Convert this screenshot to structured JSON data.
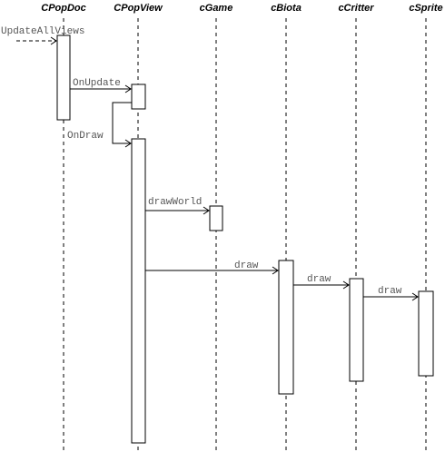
{
  "lifelines": [
    {
      "id": "cpopdoc",
      "label": "CPopDoc"
    },
    {
      "id": "cpopview",
      "label": "CPopView"
    },
    {
      "id": "cgame",
      "label": "cGame"
    },
    {
      "id": "cbiota",
      "label": "cBiota"
    },
    {
      "id": "ccritter",
      "label": "cCritter"
    },
    {
      "id": "csprite",
      "label": "cSprite"
    }
  ],
  "messages": [
    {
      "id": "update-all-views",
      "label": "UpdateAllViews"
    },
    {
      "id": "on-update",
      "label": "OnUpdate"
    },
    {
      "id": "on-draw",
      "label": "OnDraw"
    },
    {
      "id": "draw-world",
      "label": "drawWorld"
    },
    {
      "id": "draw-biota",
      "label": "draw"
    },
    {
      "id": "draw-critter",
      "label": "draw"
    },
    {
      "id": "draw-sprite",
      "label": "draw"
    }
  ]
}
